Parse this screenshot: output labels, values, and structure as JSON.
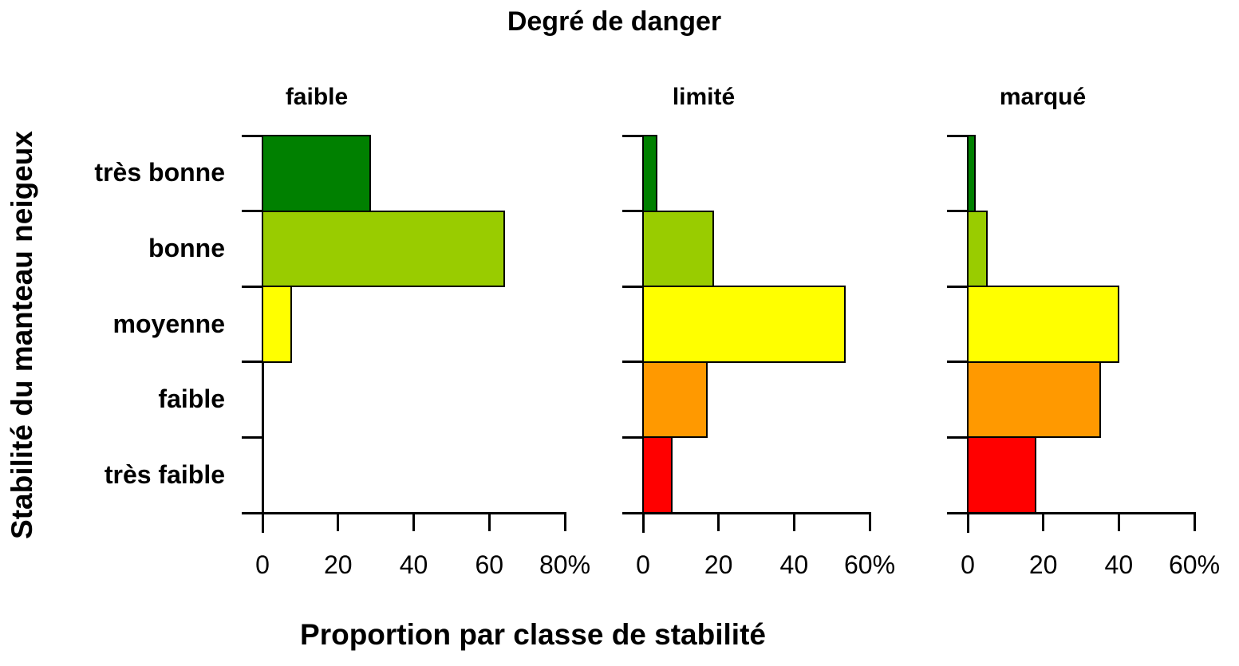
{
  "title": "Degré de danger",
  "x_axis_title": "Proportion par classe de stabilité",
  "y_axis_title": "Stabilité du manteau neigeux",
  "chart_data": {
    "type": "bar",
    "orientation": "horizontal",
    "grid": false,
    "categories": [
      "très bonne",
      "bonne",
      "moyenne",
      "faible",
      "très faible"
    ],
    "bar_colors": [
      "#008000",
      "#99CC00",
      "#FFFF00",
      "#FF9900",
      "#FF0000"
    ],
    "value_unit": "%",
    "panels": [
      {
        "label": "faible",
        "xlim": [
          0,
          80
        ],
        "xticks": [
          0,
          20,
          40,
          60,
          80
        ],
        "xtick_labels": [
          "0",
          "20",
          "40",
          "60",
          "80%"
        ],
        "values": [
          28.5,
          64,
          7.5,
          0,
          0
        ]
      },
      {
        "label": "limité",
        "xlim": [
          0,
          60
        ],
        "xticks": [
          0,
          20,
          40,
          60
        ],
        "xtick_labels": [
          "0",
          "20",
          "40",
          "60%"
        ],
        "values": [
          3.5,
          18.5,
          53.5,
          17,
          7.5
        ]
      },
      {
        "label": "marqué",
        "xlim": [
          0,
          60
        ],
        "xticks": [
          0,
          20,
          40,
          60
        ],
        "xtick_labels": [
          "0",
          "20",
          "40",
          "60%"
        ],
        "values": [
          2,
          5,
          40,
          35,
          18
        ]
      }
    ]
  }
}
